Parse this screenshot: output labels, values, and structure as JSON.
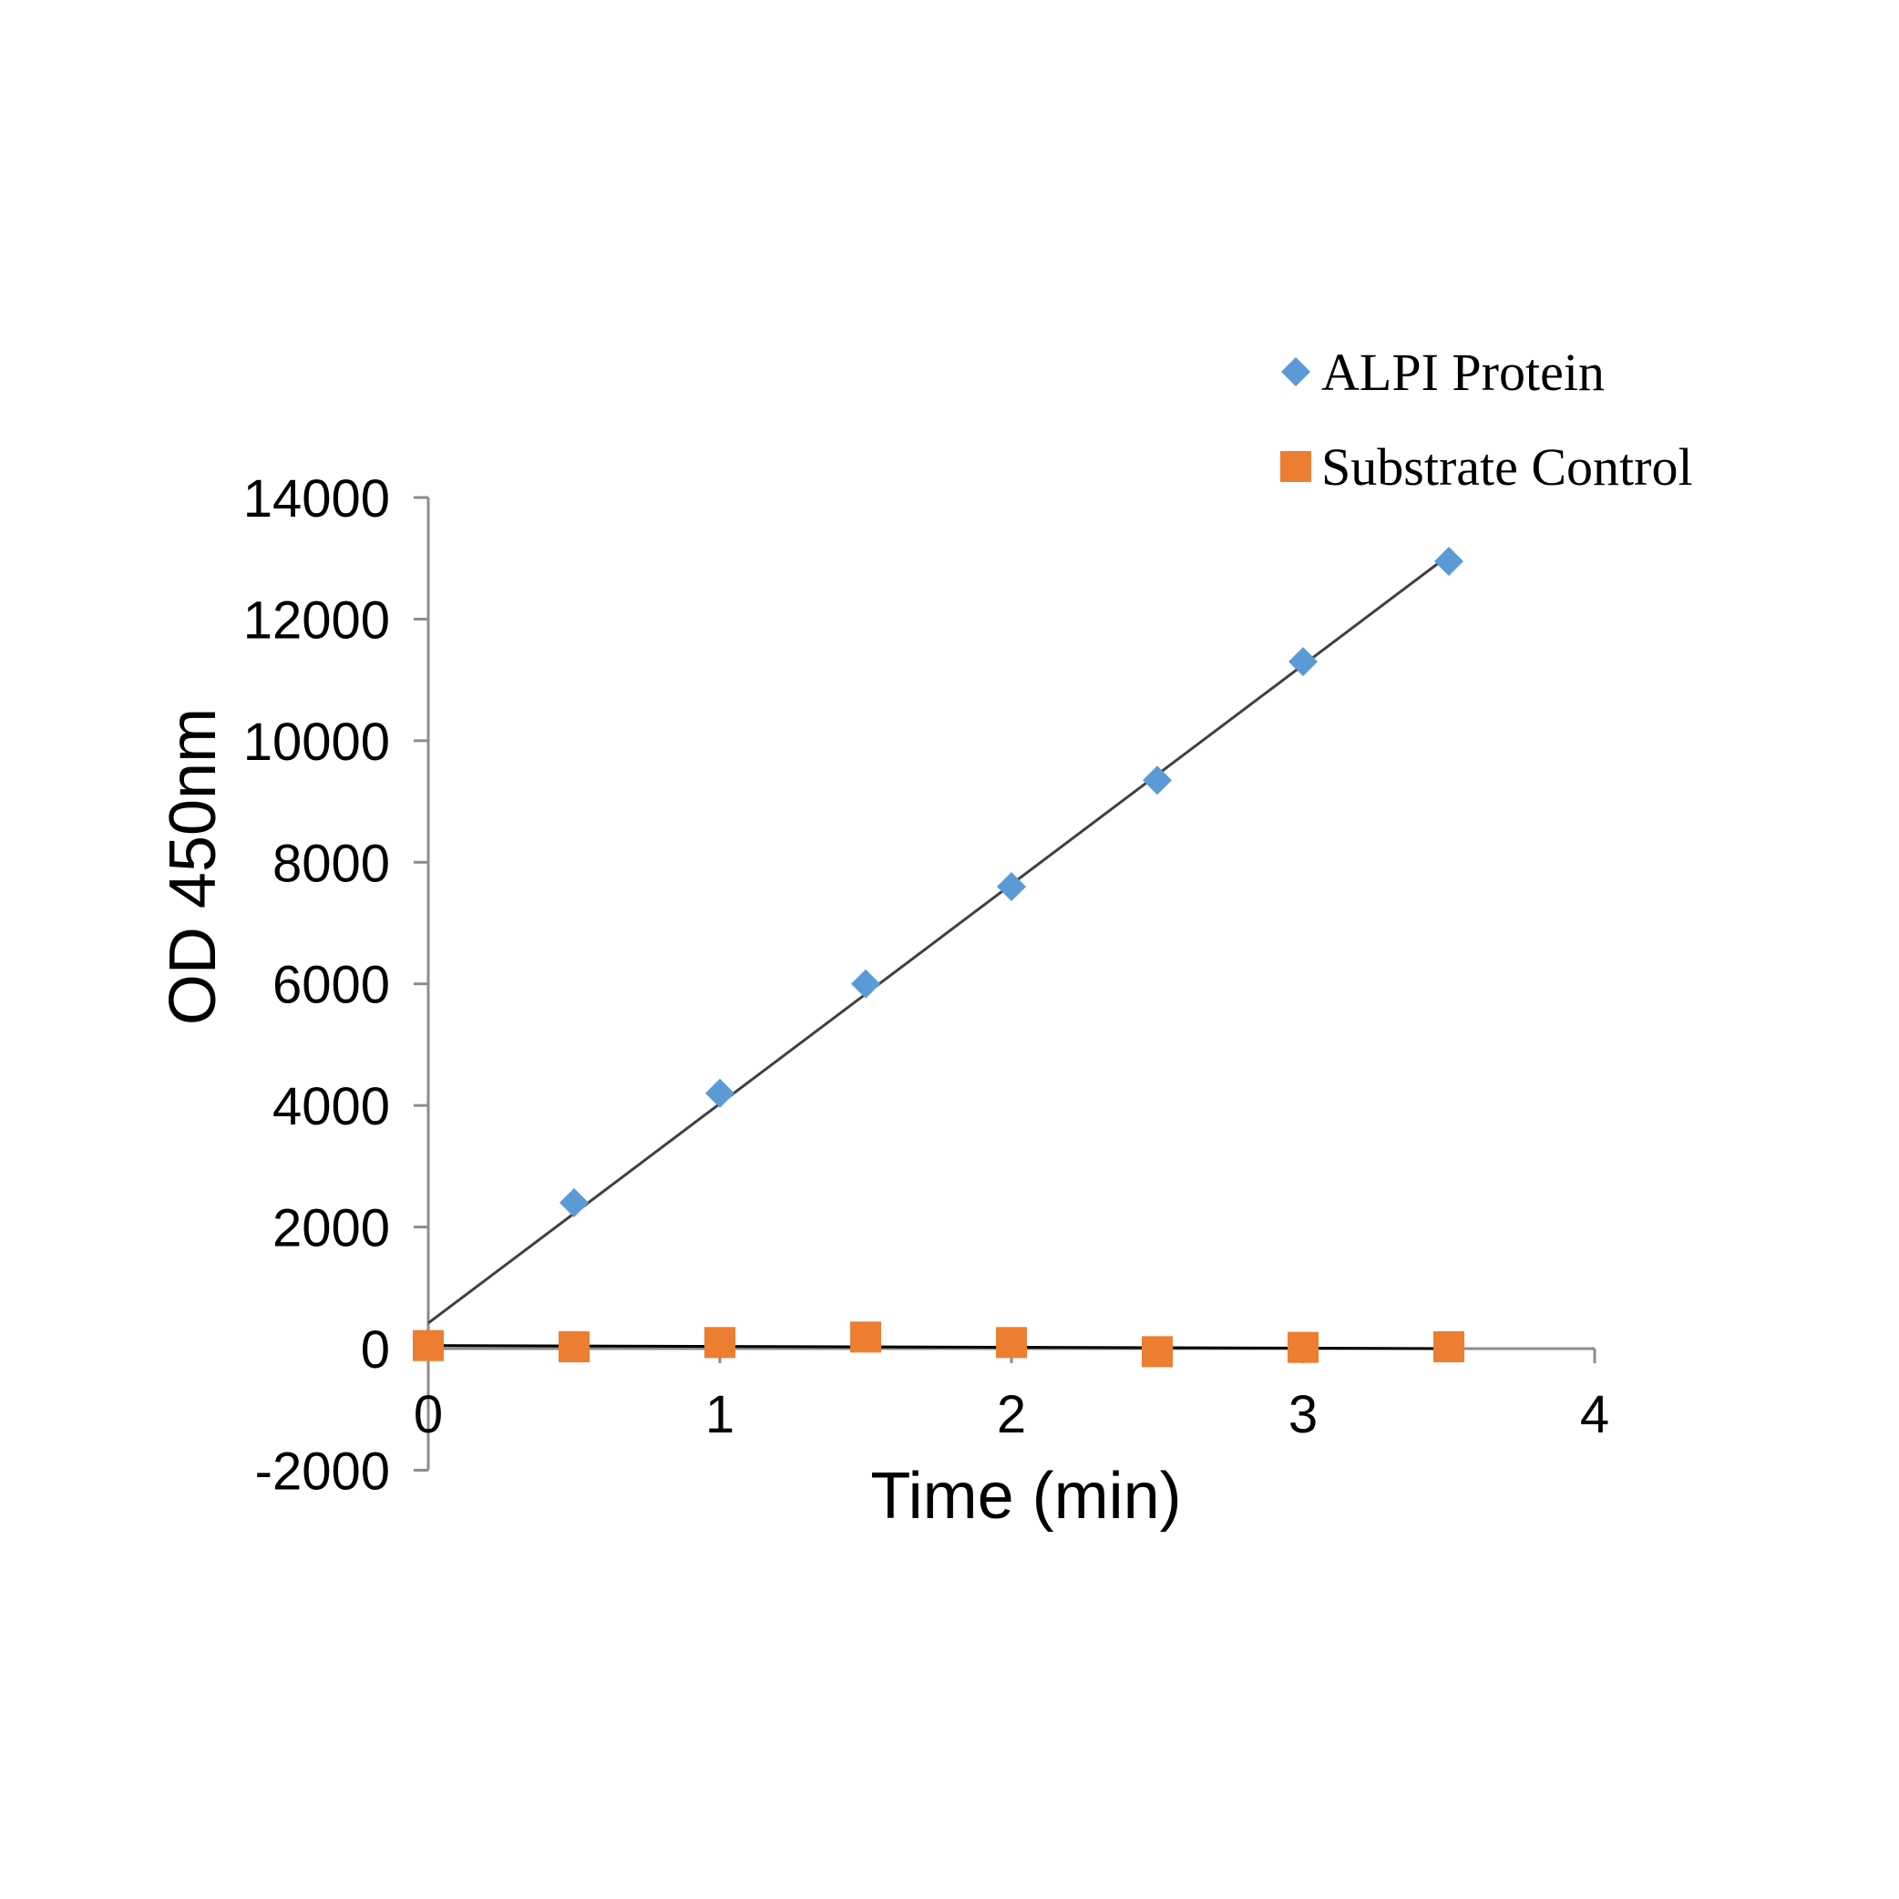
{
  "chart_data": {
    "type": "scatter",
    "title": "",
    "xlabel": "Time (min)",
    "ylabel": "OD 450nm",
    "xlim": [
      0,
      4
    ],
    "ylim": [
      -2000,
      14000
    ],
    "x_ticks": [
      0,
      1,
      2,
      3,
      4
    ],
    "y_ticks": [
      -2000,
      0,
      2000,
      4000,
      6000,
      8000,
      10000,
      12000,
      14000
    ],
    "x_tick_labels": [
      "0",
      "1",
      "2",
      "3",
      "4"
    ],
    "y_tick_labels": [
      "-2000",
      "0",
      "2000",
      "4000",
      "6000",
      "8000",
      "10000",
      "12000",
      "14000"
    ],
    "grid": false,
    "legend_position": "top-right",
    "series": [
      {
        "name": "ALPI Protein",
        "marker": "diamond",
        "color": "#5b9bd5",
        "x": [
          0.5,
          1.0,
          1.5,
          2.0,
          2.5,
          3.0,
          3.5
        ],
        "y": [
          2400,
          4200,
          6000,
          7600,
          9350,
          11300,
          12950
        ],
        "trendline": {
          "color": "#404040",
          "x": [
            0,
            3.5
          ],
          "y": [
            420,
            13050
          ]
        }
      },
      {
        "name": "Substrate Control",
        "marker": "square",
        "color": "#ed7d31",
        "x": [
          0,
          0.5,
          1.0,
          1.5,
          2.0,
          2.5,
          3.0,
          3.5
        ],
        "y": [
          50,
          30,
          100,
          190,
          100,
          -50,
          20,
          30
        ],
        "trendline": {
          "color": "#000000",
          "x": [
            0,
            3.5
          ],
          "y": [
            50,
            0
          ]
        }
      }
    ]
  }
}
